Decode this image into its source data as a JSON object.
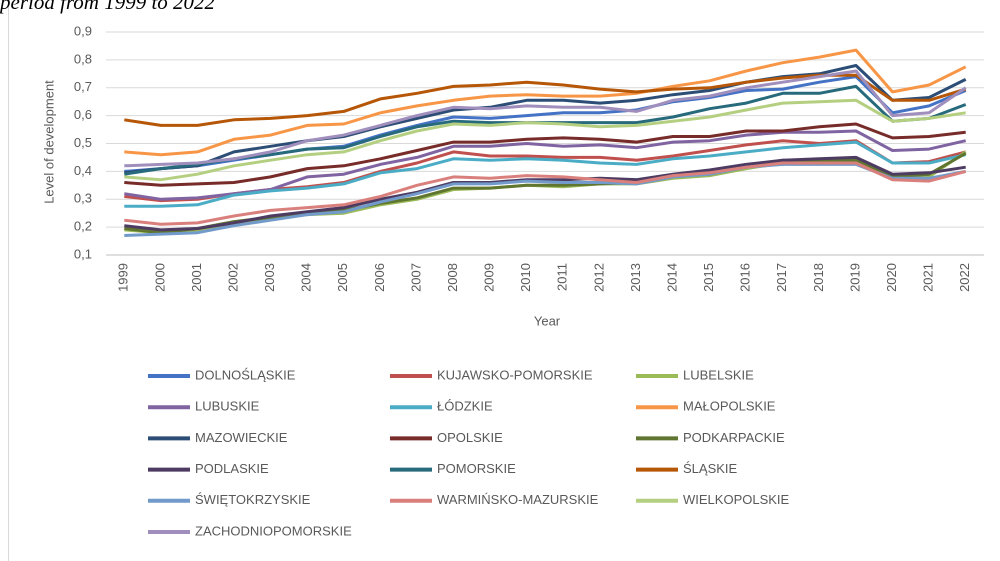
{
  "chart_data": {
    "type": "line",
    "title": "period from 1999 to 2022",
    "xlabel": "Year",
    "ylabel": "Level of development",
    "categories": [
      "1999",
      "2000",
      "2001",
      "2002",
      "2003",
      "2004",
      "2005",
      "2006",
      "2007",
      "2008",
      "2009",
      "2010",
      "2011",
      "2012",
      "2013",
      "2014",
      "2015",
      "2016",
      "2017",
      "2018",
      "2019",
      "2020",
      "2021",
      "2022"
    ],
    "ylim": [
      0.1,
      0.9
    ],
    "yticks": [
      {
        "value": 0.1,
        "label": "0,1"
      },
      {
        "value": 0.2,
        "label": "0,2"
      },
      {
        "value": 0.3,
        "label": "0,3"
      },
      {
        "value": 0.4,
        "label": "0,4"
      },
      {
        "value": 0.5,
        "label": "0,5"
      },
      {
        "value": 0.6,
        "label": "0,6"
      },
      {
        "value": 0.7,
        "label": "0,7"
      },
      {
        "value": 0.8,
        "label": "0,8"
      },
      {
        "value": 0.9,
        "label": "0,9"
      }
    ],
    "grid": true,
    "legend": "bottom",
    "series": [
      {
        "name": "DOLNOŚLĄSKIE",
        "color": "#4472c4",
        "values": [
          0.4,
          0.41,
          0.42,
          0.44,
          0.46,
          0.48,
          0.49,
          0.53,
          0.565,
          0.595,
          0.59,
          0.6,
          0.61,
          0.61,
          0.62,
          0.65,
          0.665,
          0.69,
          0.695,
          0.72,
          0.74,
          0.61,
          0.635,
          0.69
        ]
      },
      {
        "name": "KUJAWSKO-POMORSKIE",
        "color": "#c0504d",
        "values": [
          0.31,
          0.295,
          0.3,
          0.32,
          0.335,
          0.345,
          0.36,
          0.4,
          0.43,
          0.47,
          0.455,
          0.455,
          0.45,
          0.45,
          0.44,
          0.455,
          0.475,
          0.495,
          0.51,
          0.5,
          0.51,
          0.43,
          0.435,
          0.47
        ]
      },
      {
        "name": "LUBELSKIE",
        "color": "#9bbb59",
        "values": [
          0.19,
          0.18,
          0.19,
          0.21,
          0.23,
          0.245,
          0.25,
          0.28,
          0.3,
          0.335,
          0.34,
          0.35,
          0.345,
          0.355,
          0.355,
          0.375,
          0.385,
          0.41,
          0.43,
          0.43,
          0.43,
          0.375,
          0.38,
          0.47
        ]
      },
      {
        "name": "LUBUSKIE",
        "color": "#8064a2",
        "values": [
          0.32,
          0.3,
          0.305,
          0.32,
          0.335,
          0.38,
          0.39,
          0.425,
          0.45,
          0.49,
          0.49,
          0.5,
          0.49,
          0.495,
          0.485,
          0.505,
          0.51,
          0.53,
          0.54,
          0.54,
          0.545,
          0.475,
          0.48,
          0.51
        ]
      },
      {
        "name": "ŁÓDZKIE",
        "color": "#4bacc6",
        "values": [
          0.275,
          0.275,
          0.28,
          0.315,
          0.33,
          0.34,
          0.355,
          0.395,
          0.41,
          0.445,
          0.44,
          0.445,
          0.44,
          0.43,
          0.425,
          0.445,
          0.455,
          0.47,
          0.485,
          0.495,
          0.505,
          0.43,
          0.43,
          0.46
        ]
      },
      {
        "name": "MAŁOPOLSKIE",
        "color": "#f79646",
        "values": [
          0.47,
          0.46,
          0.47,
          0.515,
          0.53,
          0.565,
          0.57,
          0.61,
          0.635,
          0.655,
          0.67,
          0.675,
          0.67,
          0.67,
          0.68,
          0.705,
          0.725,
          0.76,
          0.79,
          0.81,
          0.835,
          0.685,
          0.71,
          0.775
        ]
      },
      {
        "name": "MAZOWIECKIE",
        "color": "#2c4d75",
        "values": [
          0.395,
          0.41,
          0.42,
          0.47,
          0.49,
          0.51,
          0.525,
          0.56,
          0.59,
          0.62,
          0.63,
          0.655,
          0.655,
          0.645,
          0.655,
          0.675,
          0.69,
          0.72,
          0.74,
          0.75,
          0.78,
          0.655,
          0.665,
          0.73
        ]
      },
      {
        "name": "OPOLSKIE",
        "color": "#772c2a",
        "values": [
          0.36,
          0.35,
          0.355,
          0.36,
          0.38,
          0.41,
          0.42,
          0.445,
          0.475,
          0.505,
          0.505,
          0.515,
          0.52,
          0.515,
          0.505,
          0.525,
          0.525,
          0.545,
          0.545,
          0.56,
          0.57,
          0.52,
          0.525,
          0.54
        ]
      },
      {
        "name": "PODKARPACKIE",
        "color": "#5f7530",
        "values": [
          0.195,
          0.18,
          0.195,
          0.22,
          0.235,
          0.25,
          0.26,
          0.285,
          0.305,
          0.34,
          0.34,
          0.35,
          0.35,
          0.355,
          0.36,
          0.385,
          0.39,
          0.415,
          0.44,
          0.44,
          0.44,
          0.38,
          0.39,
          0.465
        ]
      },
      {
        "name": "PODLASKIE",
        "color": "#4d3b62",
        "values": [
          0.205,
          0.19,
          0.195,
          0.215,
          0.24,
          0.255,
          0.27,
          0.3,
          0.325,
          0.36,
          0.36,
          0.37,
          0.37,
          0.375,
          0.37,
          0.39,
          0.405,
          0.425,
          0.44,
          0.445,
          0.45,
          0.39,
          0.395,
          0.415
        ]
      },
      {
        "name": "POMORSKIE",
        "color": "#276a7c",
        "values": [
          0.39,
          0.41,
          0.425,
          0.445,
          0.46,
          0.48,
          0.485,
          0.525,
          0.56,
          0.58,
          0.575,
          0.575,
          0.575,
          0.575,
          0.575,
          0.595,
          0.625,
          0.645,
          0.68,
          0.68,
          0.705,
          0.58,
          0.59,
          0.64
        ]
      },
      {
        "name": "ŚLĄSKIE",
        "color": "#b65708",
        "values": [
          0.585,
          0.565,
          0.565,
          0.585,
          0.59,
          0.6,
          0.615,
          0.66,
          0.68,
          0.705,
          0.71,
          0.72,
          0.71,
          0.695,
          0.685,
          0.695,
          0.7,
          0.72,
          0.735,
          0.745,
          0.745,
          0.655,
          0.655,
          0.695
        ]
      },
      {
        "name": "ŚWIĘTOKRZYSKIE",
        "color": "#729aca",
        "values": [
          0.17,
          0.175,
          0.18,
          0.205,
          0.225,
          0.245,
          0.255,
          0.29,
          0.32,
          0.355,
          0.355,
          0.365,
          0.36,
          0.36,
          0.355,
          0.38,
          0.39,
          0.415,
          0.425,
          0.425,
          0.425,
          0.375,
          0.375,
          0.4
        ]
      },
      {
        "name": "WARMIŃSKO-MAZURSKIE",
        "color": "#d9807d",
        "values": [
          0.225,
          0.21,
          0.215,
          0.24,
          0.26,
          0.27,
          0.28,
          0.31,
          0.35,
          0.38,
          0.375,
          0.385,
          0.38,
          0.37,
          0.36,
          0.385,
          0.395,
          0.415,
          0.43,
          0.43,
          0.43,
          0.37,
          0.365,
          0.4
        ]
      },
      {
        "name": "WIELKOPOLSKIE",
        "color": "#b5cf81",
        "values": [
          0.38,
          0.37,
          0.39,
          0.42,
          0.44,
          0.46,
          0.47,
          0.51,
          0.545,
          0.57,
          0.565,
          0.575,
          0.57,
          0.56,
          0.565,
          0.58,
          0.595,
          0.62,
          0.645,
          0.65,
          0.655,
          0.58,
          0.59,
          0.61
        ]
      },
      {
        "name": "ZACHODNIOPOMORSKIE",
        "color": "#a08fbd",
        "values": [
          0.42,
          0.425,
          0.43,
          0.445,
          0.47,
          0.51,
          0.53,
          0.565,
          0.6,
          0.63,
          0.625,
          0.635,
          0.63,
          0.63,
          0.615,
          0.655,
          0.67,
          0.7,
          0.72,
          0.74,
          0.76,
          0.6,
          0.61,
          0.7
        ]
      }
    ]
  }
}
